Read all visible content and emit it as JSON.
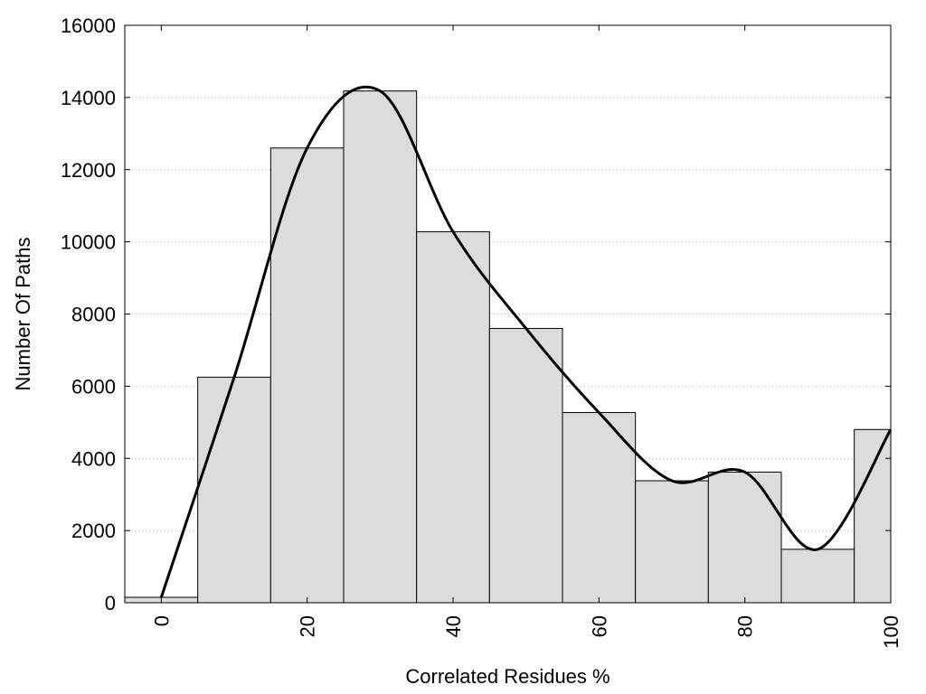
{
  "chart_data": {
    "type": "bar",
    "title": "",
    "xlabel": "Correlated Residues %",
    "ylabel": "Number Of Paths",
    "xlim": [
      -5,
      100
    ],
    "ylim": [
      0,
      16000
    ],
    "xticks": [
      0,
      20,
      40,
      60,
      80,
      100
    ],
    "yticks": [
      0,
      2000,
      4000,
      6000,
      8000,
      10000,
      12000,
      14000,
      16000
    ],
    "bar_width": 10,
    "grid": "horizontal dotted",
    "bars": [
      {
        "x": 0,
        "value": 150
      },
      {
        "x": 10,
        "value": 6250
      },
      {
        "x": 20,
        "value": 12600
      },
      {
        "x": 30,
        "value": 14180
      },
      {
        "x": 40,
        "value": 10280
      },
      {
        "x": 50,
        "value": 7600
      },
      {
        "x": 60,
        "value": 5270
      },
      {
        "x": 70,
        "value": 3380
      },
      {
        "x": 80,
        "value": 3620
      },
      {
        "x": 90,
        "value": 1480
      },
      {
        "x": 100,
        "value": 4800
      }
    ],
    "bar_color": "#dcdcdc",
    "line_color": "#000000"
  }
}
